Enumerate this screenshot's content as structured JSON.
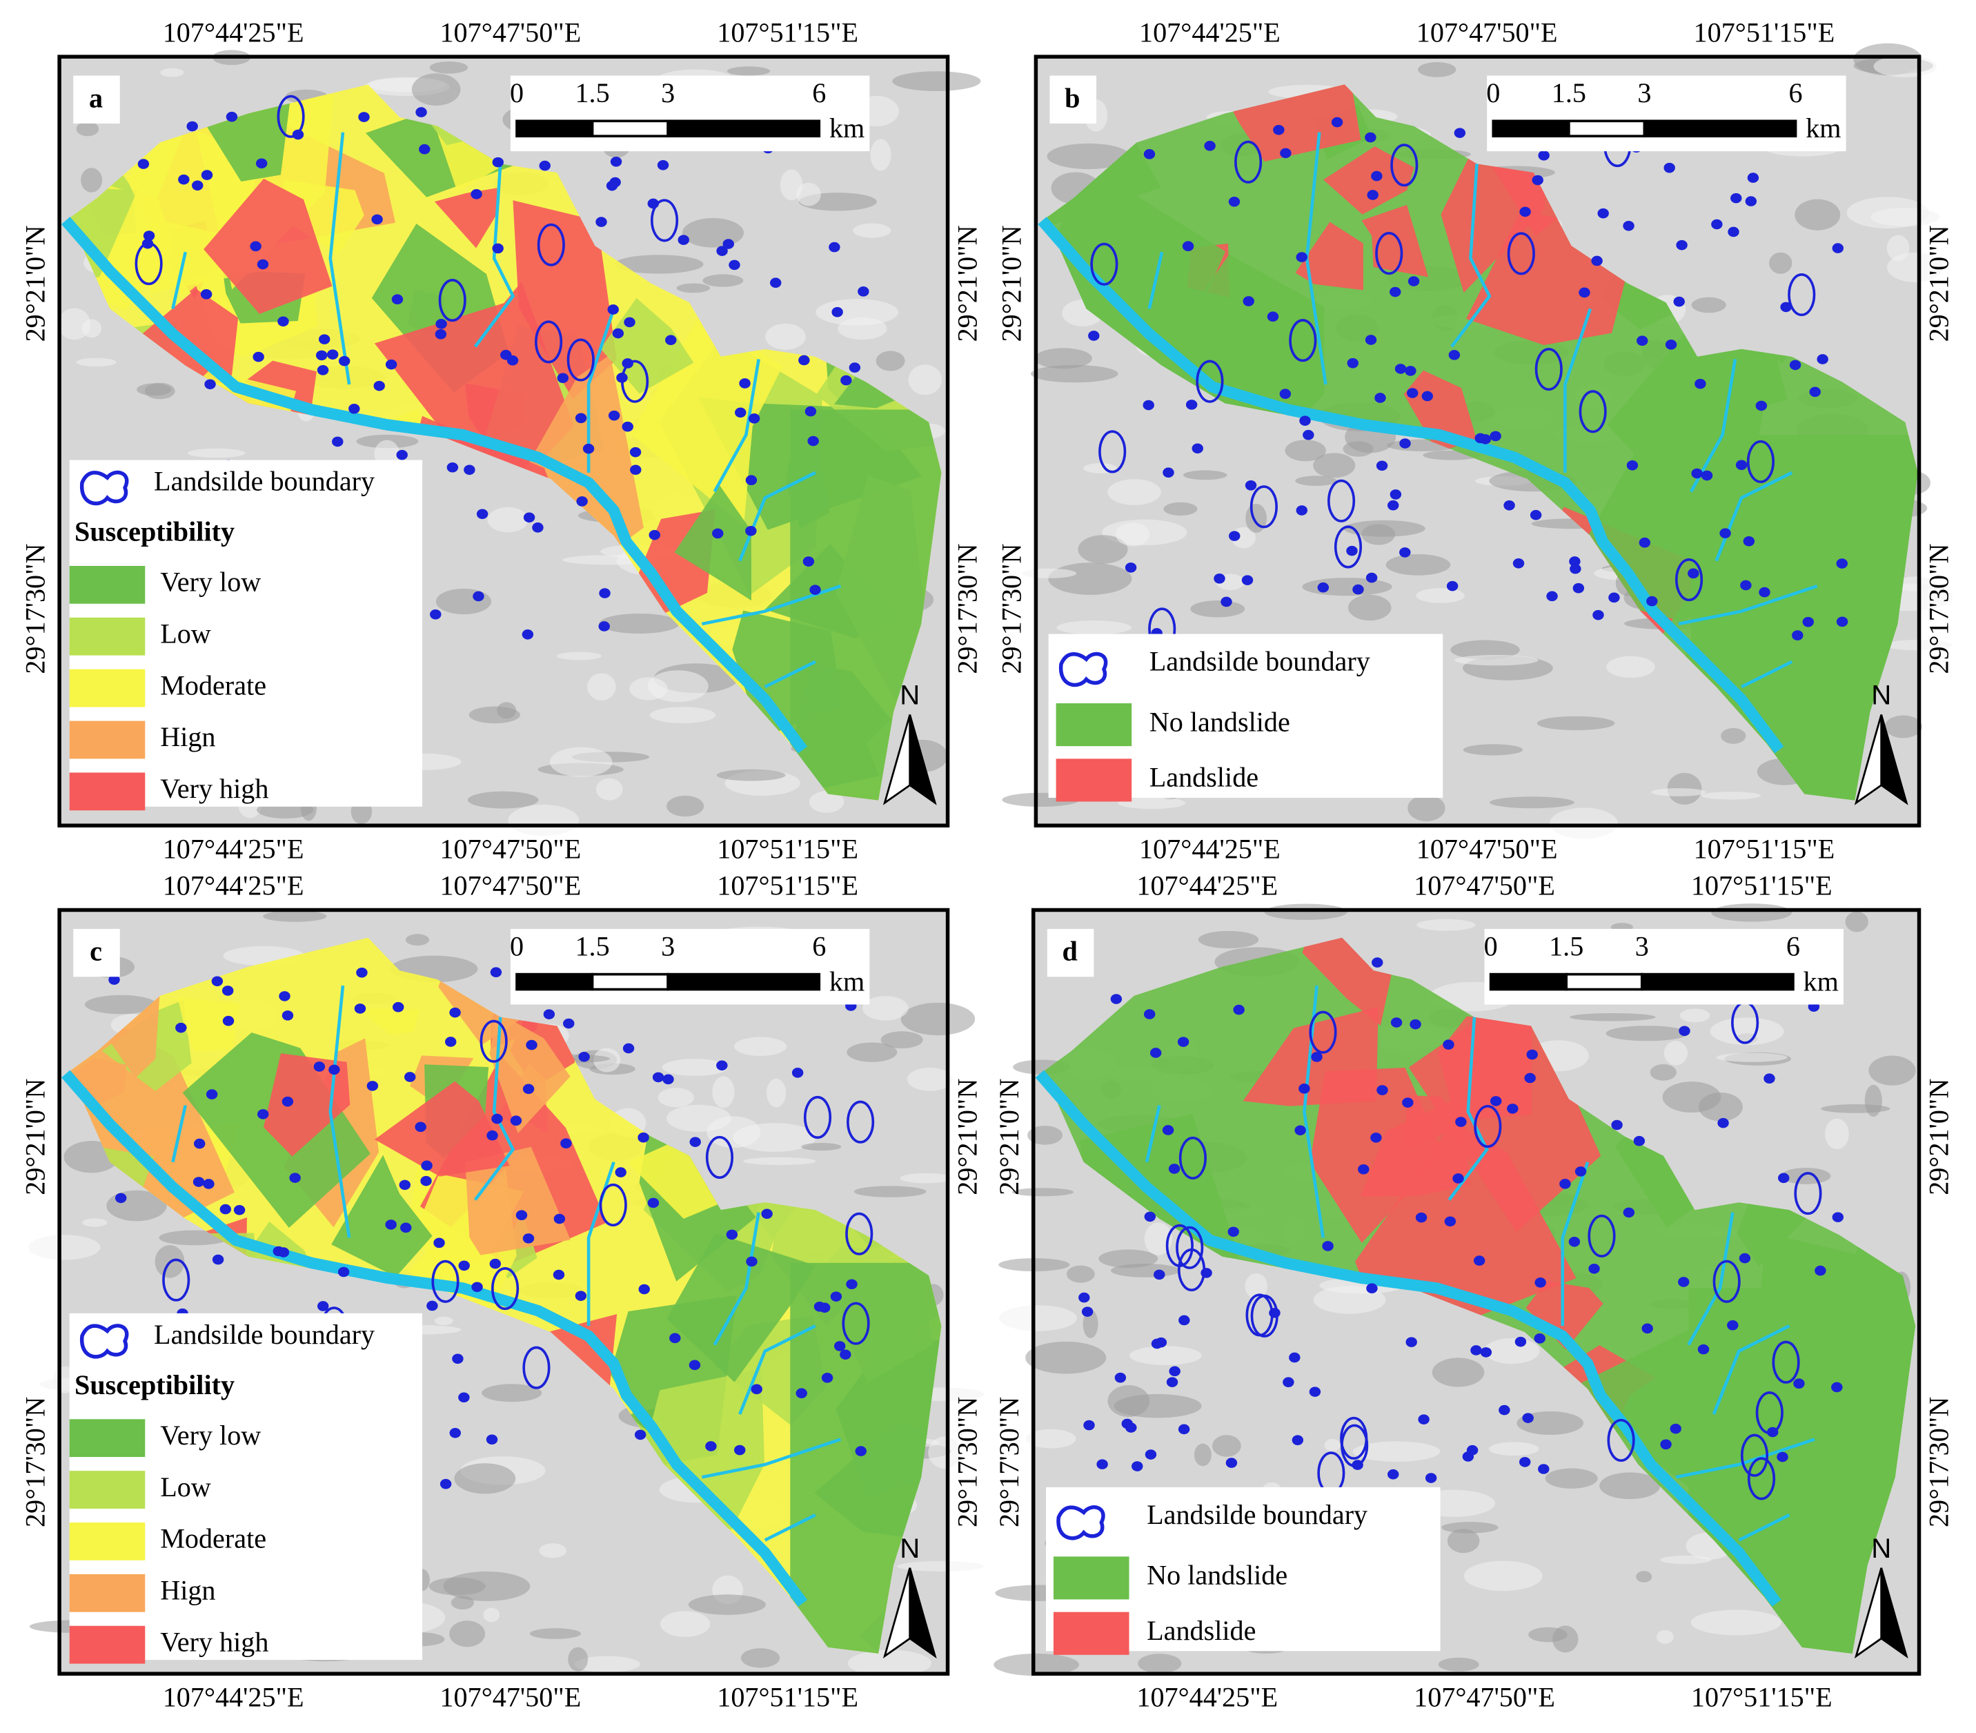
{
  "panels": [
    {
      "letter": "a",
      "top_labels": [
        "107°44'25\"E",
        "107°47'50\"E",
        "107°51'15\"E"
      ],
      "bottom_labels": [
        "107°44'25\"E",
        "107°47'50\"E",
        "107°51'15\"E"
      ],
      "left_labels": [
        "29°21'0\"N",
        "29°17'30\"N"
      ],
      "right_labels": [
        "29°21'0\"N",
        "29°17'30\"N"
      ],
      "scale": {
        "ticks": [
          0,
          1.5,
          3,
          6
        ],
        "unit": "km"
      },
      "north": "N",
      "legend": {
        "boundary": "Landsilde boundary",
        "title": "Susceptibility",
        "items": [
          {
            "label": "Very low",
            "color": "#6cbf4a"
          },
          {
            "label": "Low",
            "color": "#b8e050"
          },
          {
            "label": "Moderate",
            "color": "#f7f545"
          },
          {
            "label": "Hign",
            "color": "#f9a75a"
          },
          {
            "label": "Very high",
            "color": "#f65a5a"
          }
        ]
      }
    },
    {
      "letter": "b",
      "top_labels": [
        "107°44'25\"E",
        "107°47'50\"E",
        "107°51'15\"E"
      ],
      "bottom_labels": [
        "107°44'25\"E",
        "107°47'50\"E",
        "107°51'15\"E"
      ],
      "left_labels": [
        "29°21'0\"N",
        "29°17'30\"N"
      ],
      "right_labels": [
        "29°21'0\"N",
        "29°17'30\"N"
      ],
      "scale": {
        "ticks": [
          0,
          1.5,
          3,
          6
        ],
        "unit": "km"
      },
      "north": "N",
      "legend": {
        "boundary": "Landsilde boundary",
        "items": [
          {
            "label": "No landslide",
            "color": "#6cbf4a"
          },
          {
            "label": "Landslide",
            "color": "#f65a5a"
          }
        ]
      }
    },
    {
      "letter": "c",
      "top_labels": [
        "107°44'25\"E",
        "107°47'50\"E",
        "107°51'15\"E"
      ],
      "bottom_labels": [
        "107°44'25\"E",
        "107°47'50\"E",
        "107°51'15\"E"
      ],
      "left_labels": [
        "29°21'0\"N",
        "29°17'30\"N"
      ],
      "right_labels": [
        "29°21'0\"N",
        "29°17'30\"N"
      ],
      "scale": {
        "ticks": [
          0,
          1.5,
          3,
          6
        ],
        "unit": "km"
      },
      "north": "N",
      "legend": {
        "boundary": "Landsilde boundary",
        "title": "Susceptibility",
        "items": [
          {
            "label": "Very low",
            "color": "#6cbf4a"
          },
          {
            "label": "Low",
            "color": "#b8e050"
          },
          {
            "label": "Moderate",
            "color": "#f7f545"
          },
          {
            "label": "Hign",
            "color": "#f9a75a"
          },
          {
            "label": "Very high",
            "color": "#f65a5a"
          }
        ]
      }
    },
    {
      "letter": "d",
      "top_labels": [
        "107°44'25\"E",
        "107°47'50\"E",
        "107°51'15\"E"
      ],
      "bottom_labels": [
        "107°44'25\"E",
        "107°47'50\"E",
        "107°51'15\"E"
      ],
      "left_labels": [
        "29°21'0\"N",
        "29°17'30\"N"
      ],
      "right_labels": [
        "29°21'0\"N",
        "29°17'30\"N"
      ],
      "scale": {
        "ticks": [
          0,
          1.5,
          3,
          6
        ],
        "unit": "km"
      },
      "north": "N",
      "legend": {
        "boundary": "Landsilde boundary",
        "items": [
          {
            "label": "No landslide",
            "color": "#6cbf4a"
          },
          {
            "label": "Landslide",
            "color": "#f65a5a"
          }
        ]
      }
    }
  ]
}
